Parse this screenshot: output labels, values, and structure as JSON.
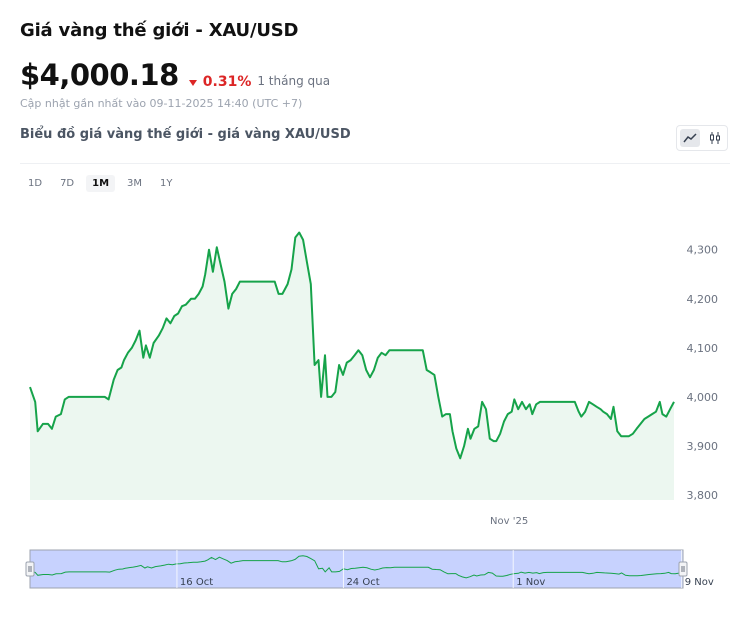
{
  "header": {
    "title": "Giá vàng thế giới - XAU/USD",
    "price": "$4,000.18",
    "change": "0.31%",
    "period": "1 tháng qua",
    "updated": "Cập nhật gần nhất vào 09-11-2025 14:40 (UTC +7)"
  },
  "chart_section": {
    "subtitle": "Biểu đồ giá vàng thế giới - giá vàng XAU/USD",
    "chart_types": [
      "line-chart-icon",
      "candlestick-icon"
    ],
    "ranges": [
      "1D",
      "7D",
      "1M",
      "3M",
      "1Y"
    ],
    "active_range": "1M"
  },
  "colors": {
    "line": "#16a34a",
    "fill": "#ecf7f0",
    "down": "#dc2626",
    "navigator_fill": "#c7d2fe"
  },
  "chart_data": {
    "type": "area",
    "ylim": [
      3790,
      4330
    ],
    "y_ticks": [
      3800,
      3900,
      4000,
      4100,
      4200,
      4300
    ],
    "y_tick_labels": [
      "3,800",
      "3,900",
      "4,000",
      "4,100",
      "4,200",
      "4,300"
    ],
    "x_range": [
      0,
      1
    ],
    "x_ticks": [
      {
        "x": 0.744,
        "label": "Nov '25"
      }
    ],
    "grid": false,
    "series": [
      {
        "values": [
          [
            0.0,
            4020
          ],
          [
            0.008,
            3990
          ],
          [
            0.012,
            3930
          ],
          [
            0.02,
            3945
          ],
          [
            0.028,
            3945
          ],
          [
            0.034,
            3935
          ],
          [
            0.04,
            3960
          ],
          [
            0.048,
            3965
          ],
          [
            0.054,
            3995
          ],
          [
            0.06,
            4000
          ],
          [
            0.066,
            4000
          ],
          [
            0.11,
            4000
          ],
          [
            0.116,
            4000
          ],
          [
            0.122,
            3995
          ],
          [
            0.13,
            4035
          ],
          [
            0.136,
            4055
          ],
          [
            0.142,
            4060
          ],
          [
            0.146,
            4075
          ],
          [
            0.152,
            4090
          ],
          [
            0.158,
            4100
          ],
          [
            0.164,
            4115
          ],
          [
            0.17,
            4135
          ],
          [
            0.176,
            4080
          ],
          [
            0.18,
            4105
          ],
          [
            0.186,
            4080
          ],
          [
            0.192,
            4110
          ],
          [
            0.2,
            4125
          ],
          [
            0.206,
            4140
          ],
          [
            0.212,
            4160
          ],
          [
            0.218,
            4150
          ],
          [
            0.224,
            4165
          ],
          [
            0.23,
            4170
          ],
          [
            0.236,
            4185
          ],
          [
            0.242,
            4188
          ],
          [
            0.25,
            4200
          ],
          [
            0.256,
            4200
          ],
          [
            0.262,
            4210
          ],
          [
            0.268,
            4225
          ],
          [
            0.272,
            4250
          ],
          [
            0.278,
            4300
          ],
          [
            0.284,
            4255
          ],
          [
            0.29,
            4305
          ],
          [
            0.296,
            4270
          ],
          [
            0.302,
            4235
          ],
          [
            0.308,
            4180
          ],
          [
            0.314,
            4210
          ],
          [
            0.32,
            4220
          ],
          [
            0.326,
            4235
          ],
          [
            0.38,
            4235
          ],
          [
            0.386,
            4210
          ],
          [
            0.392,
            4210
          ],
          [
            0.4,
            4230
          ],
          [
            0.406,
            4260
          ],
          [
            0.412,
            4325
          ],
          [
            0.418,
            4335
          ],
          [
            0.424,
            4320
          ],
          [
            0.43,
            4275
          ],
          [
            0.436,
            4230
          ],
          [
            0.442,
            4065
          ],
          [
            0.448,
            4075
          ],
          [
            0.452,
            4000
          ],
          [
            0.458,
            4085
          ],
          [
            0.462,
            4000
          ],
          [
            0.468,
            4000
          ],
          [
            0.474,
            4010
          ],
          [
            0.48,
            4065
          ],
          [
            0.486,
            4045
          ],
          [
            0.492,
            4070
          ],
          [
            0.498,
            4075
          ],
          [
            0.504,
            4085
          ],
          [
            0.51,
            4095
          ],
          [
            0.516,
            4085
          ],
          [
            0.522,
            4055
          ],
          [
            0.528,
            4040
          ],
          [
            0.534,
            4055
          ],
          [
            0.54,
            4080
          ],
          [
            0.546,
            4090
          ],
          [
            0.552,
            4085
          ],
          [
            0.558,
            4095
          ],
          [
            0.61,
            4095
          ],
          [
            0.616,
            4055
          ],
          [
            0.622,
            4050
          ],
          [
            0.628,
            4045
          ],
          [
            0.634,
            4000
          ],
          [
            0.64,
            3960
          ],
          [
            0.646,
            3965
          ],
          [
            0.652,
            3965
          ],
          [
            0.656,
            3930
          ],
          [
            0.662,
            3895
          ],
          [
            0.668,
            3875
          ],
          [
            0.674,
            3900
          ],
          [
            0.68,
            3935
          ],
          [
            0.684,
            3915
          ],
          [
            0.69,
            3935
          ],
          [
            0.696,
            3940
          ],
          [
            0.702,
            3990
          ],
          [
            0.708,
            3975
          ],
          [
            0.714,
            3915
          ],
          [
            0.72,
            3910
          ],
          [
            0.724,
            3910
          ],
          [
            0.73,
            3925
          ],
          [
            0.736,
            3950
          ],
          [
            0.742,
            3965
          ],
          [
            0.748,
            3970
          ],
          [
            0.752,
            3995
          ],
          [
            0.758,
            3975
          ],
          [
            0.764,
            3990
          ],
          [
            0.77,
            3975
          ],
          [
            0.776,
            3985
          ],
          [
            0.78,
            3965
          ],
          [
            0.786,
            3985
          ],
          [
            0.792,
            3990
          ],
          [
            0.798,
            3990
          ],
          [
            0.846,
            3990
          ],
          [
            0.852,
            3970
          ],
          [
            0.856,
            3960
          ],
          [
            0.862,
            3970
          ],
          [
            0.868,
            3990
          ],
          [
            0.874,
            3985
          ],
          [
            0.88,
            3980
          ],
          [
            0.886,
            3975
          ],
          [
            0.89,
            3970
          ],
          [
            0.896,
            3965
          ],
          [
            0.902,
            3955
          ],
          [
            0.906,
            3980
          ],
          [
            0.912,
            3930
          ],
          [
            0.918,
            3920
          ],
          [
            0.924,
            3920
          ],
          [
            0.93,
            3920
          ],
          [
            0.936,
            3925
          ],
          [
            0.942,
            3935
          ],
          [
            0.948,
            3945
          ],
          [
            0.954,
            3955
          ],
          [
            0.96,
            3960
          ],
          [
            0.966,
            3965
          ],
          [
            0.972,
            3970
          ],
          [
            0.978,
            3990
          ],
          [
            0.982,
            3965
          ],
          [
            0.988,
            3960
          ],
          [
            0.994,
            3975
          ],
          [
            1.0,
            3990
          ]
        ]
      }
    ],
    "navigator": {
      "labels": [
        "16 Oct",
        "24 Oct",
        "1 Nov",
        "9 Nov"
      ]
    }
  }
}
